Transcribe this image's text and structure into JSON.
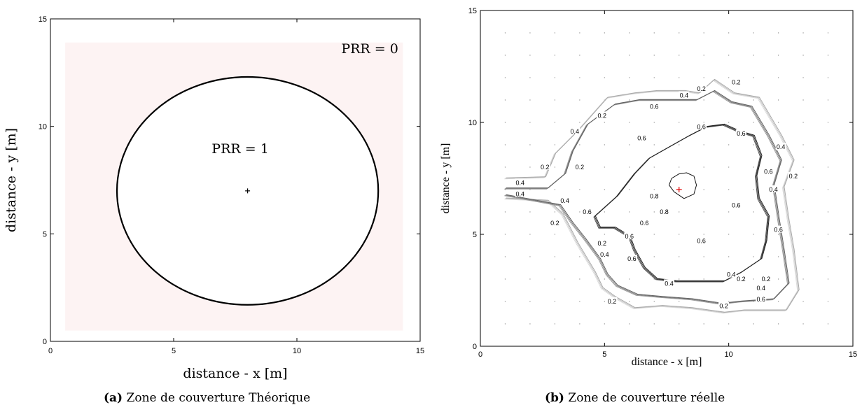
{
  "chart_data": [
    {
      "type": "scatter",
      "panel": "(a)",
      "caption_tag": "(a)",
      "caption_text": "Zone de couverture Théorique",
      "xlabel": "distance - x [m]",
      "ylabel": "distance - y [m]",
      "xlim": [
        0,
        15
      ],
      "ylim": [
        0,
        15
      ],
      "xticks": [
        0,
        5,
        10,
        15
      ],
      "yticks": [
        0,
        5,
        10,
        15
      ],
      "grid": false,
      "shaded_region": {
        "x": [
          0.6,
          14.3
        ],
        "y": [
          0.5,
          13.9
        ],
        "color": "#fdf3f3"
      },
      "circle": {
        "cx": 8,
        "cy": 7,
        "r": 5.3
      },
      "center_marker": {
        "x": 8,
        "y": 7,
        "symbol": "+"
      },
      "annotations": [
        {
          "text": "PRR = 0",
          "x": 14.0,
          "y": 13.6
        },
        {
          "text": "PRR = 1",
          "x": 7.7,
          "y": 8.95
        }
      ]
    },
    {
      "type": "contour",
      "panel": "(b)",
      "caption_tag": "(b)",
      "caption_text": "Zone de couverture réelle",
      "xlabel": "distance - x [m]",
      "ylabel": "distance - y [m]",
      "xlim": [
        0,
        15
      ],
      "ylim": [
        0,
        15
      ],
      "xticks": [
        0,
        5,
        10,
        15
      ],
      "yticks": [
        0,
        5,
        10,
        15
      ],
      "grid": true,
      "grid_style": "dotted",
      "levels": [
        0.2,
        0.4,
        0.6,
        0.8
      ],
      "contours": [
        {
          "level": 0.2,
          "points": [
            [
              1,
              7.5
            ],
            [
              2.6,
              7.55
            ],
            [
              3,
              8.6
            ],
            [
              3.9,
              9.6
            ],
            [
              5.1,
              11.1
            ],
            [
              6.2,
              11.3
            ],
            [
              7.1,
              11.4
            ],
            [
              8.2,
              11.4
            ],
            [
              8.8,
              11.3
            ],
            [
              9.4,
              11.9
            ],
            [
              10.2,
              11.3
            ],
            [
              11.2,
              11.1
            ],
            [
              12.1,
              9.4
            ],
            [
              12.6,
              8.3
            ],
            [
              12.2,
              7.1
            ],
            [
              12.4,
              5.6
            ],
            [
              12.6,
              4.3
            ],
            [
              12.8,
              2.5
            ],
            [
              12.3,
              1.6
            ],
            [
              10.6,
              1.6
            ],
            [
              9.8,
              1.5
            ],
            [
              8.5,
              1.7
            ],
            [
              7.3,
              1.8
            ],
            [
              6.2,
              1.7
            ],
            [
              5.4,
              2.2
            ],
            [
              4.9,
              2.6
            ],
            [
              4.6,
              3.3
            ],
            [
              3.9,
              4.6
            ],
            [
              3.3,
              5.9
            ],
            [
              2.7,
              6.5
            ],
            [
              1,
              6.6
            ]
          ]
        },
        {
          "level": 0.4,
          "points": [
            [
              1,
              7.05
            ],
            [
              2.7,
              7.05
            ],
            [
              3.4,
              7.7
            ],
            [
              3.7,
              8.7
            ],
            [
              4.3,
              9.9
            ],
            [
              5.4,
              10.8
            ],
            [
              6.4,
              11
            ],
            [
              7.3,
              11
            ],
            [
              8.1,
              11
            ],
            [
              8.7,
              11
            ],
            [
              9.4,
              11.4
            ],
            [
              10.1,
              10.9
            ],
            [
              10.9,
              10.7
            ],
            [
              11.6,
              9.4
            ],
            [
              12.1,
              8.3
            ],
            [
              11.8,
              7.2
            ],
            [
              12,
              5.7
            ],
            [
              12.2,
              4.3
            ],
            [
              12.4,
              2.8
            ],
            [
              11.8,
              2.1
            ],
            [
              10.5,
              2
            ],
            [
              9.7,
              1.9
            ],
            [
              8.5,
              2.1
            ],
            [
              7.3,
              2.2
            ],
            [
              6.3,
              2.3
            ],
            [
              5.5,
              2.7
            ],
            [
              5.1,
              3.2
            ],
            [
              4.8,
              3.9
            ],
            [
              4.2,
              4.8
            ],
            [
              3.7,
              5.5
            ],
            [
              3.2,
              6.3
            ],
            [
              1,
              6.75
            ]
          ]
        },
        {
          "level": 0.6,
          "points": [
            [
              4.6,
              5.8
            ],
            [
              5.5,
              6.7
            ],
            [
              6.2,
              7.7
            ],
            [
              6.8,
              8.4
            ],
            [
              7.6,
              8.9
            ],
            [
              8.4,
              9.4
            ],
            [
              9.1,
              9.8
            ],
            [
              9.8,
              9.9
            ],
            [
              10.4,
              9.6
            ],
            [
              11,
              9.4
            ],
            [
              11.3,
              8.5
            ],
            [
              11.1,
              7.6
            ],
            [
              11.2,
              6.6
            ],
            [
              11.6,
              5.8
            ],
            [
              11.5,
              4.7
            ],
            [
              11.3,
              3.9
            ],
            [
              10.5,
              3.3
            ],
            [
              9.8,
              2.9
            ],
            [
              8.8,
              2.9
            ],
            [
              7.9,
              2.9
            ],
            [
              7.1,
              3
            ],
            [
              6.6,
              3.5
            ],
            [
              6.2,
              4.3
            ],
            [
              6,
              4.9
            ],
            [
              5.4,
              5.3
            ],
            [
              4.8,
              5.3
            ],
            [
              4.6,
              5.8
            ]
          ]
        },
        {
          "level": 0.8,
          "points": [
            [
              7.6,
              7.2
            ],
            [
              7.8,
              6.9
            ],
            [
              8.2,
              6.6
            ],
            [
              8.6,
              6.8
            ],
            [
              8.7,
              7.2
            ],
            [
              8.6,
              7.6
            ],
            [
              8.3,
              7.75
            ],
            [
              8,
              7.7
            ],
            [
              7.7,
              7.5
            ],
            [
              7.6,
              7.2
            ]
          ]
        }
      ],
      "contour_labels": [
        {
          "text": "0.2",
          "x": 2.6,
          "y": 8.0
        },
        {
          "text": "0.2",
          "x": 4.0,
          "y": 8.0
        },
        {
          "text": "0.4",
          "x": 1.6,
          "y": 7.3
        },
        {
          "text": "0.4",
          "x": 1.6,
          "y": 6.8
        },
        {
          "text": "0.4",
          "x": 3.8,
          "y": 9.6
        },
        {
          "text": "0.2",
          "x": 4.9,
          "y": 10.3
        },
        {
          "text": "0.4",
          "x": 8.2,
          "y": 11.2
        },
        {
          "text": "0.2",
          "x": 8.9,
          "y": 11.5
        },
        {
          "text": "0.6",
          "x": 7.0,
          "y": 10.7
        },
        {
          "text": "0.2",
          "x": 10.3,
          "y": 11.8
        },
        {
          "text": "0.6",
          "x": 6.5,
          "y": 9.3
        },
        {
          "text": "0.6",
          "x": 8.9,
          "y": 9.8
        },
        {
          "text": "0.6",
          "x": 10.5,
          "y": 9.5
        },
        {
          "text": "0.4",
          "x": 12.1,
          "y": 8.9
        },
        {
          "text": "0.6",
          "x": 11.6,
          "y": 7.8
        },
        {
          "text": "0.2",
          "x": 12.6,
          "y": 7.6
        },
        {
          "text": "0.4",
          "x": 11.8,
          "y": 7.0
        },
        {
          "text": "0.8",
          "x": 7.0,
          "y": 6.7
        },
        {
          "text": "0.8",
          "x": 7.4,
          "y": 6.0
        },
        {
          "text": "0.6",
          "x": 10.3,
          "y": 6.3
        },
        {
          "text": "0.4",
          "x": 3.4,
          "y": 6.5
        },
        {
          "text": "0.6",
          "x": 4.3,
          "y": 6.0
        },
        {
          "text": "0.6",
          "x": 6.6,
          "y": 5.5
        },
        {
          "text": "0.6",
          "x": 12.0,
          "y": 5.2
        },
        {
          "text": "0.2",
          "x": 3.0,
          "y": 5.5
        },
        {
          "text": "0.6",
          "x": 6.0,
          "y": 4.9
        },
        {
          "text": "0.6",
          "x": 8.9,
          "y": 4.7
        },
        {
          "text": "0.2",
          "x": 4.9,
          "y": 4.6
        },
        {
          "text": "0.4",
          "x": 5.0,
          "y": 4.1
        },
        {
          "text": "0.6",
          "x": 6.1,
          "y": 3.9
        },
        {
          "text": "0.4",
          "x": 10.1,
          "y": 3.2
        },
        {
          "text": "0.2",
          "x": 10.5,
          "y": 3.0
        },
        {
          "text": "0.4",
          "x": 7.6,
          "y": 2.8
        },
        {
          "text": "0.2",
          "x": 11.5,
          "y": 3.0
        },
        {
          "text": "0.4",
          "x": 11.3,
          "y": 2.6
        },
        {
          "text": "0.6",
          "x": 11.3,
          "y": 2.1
        },
        {
          "text": "0.2",
          "x": 5.3,
          "y": 2.0
        },
        {
          "text": "0.2",
          "x": 9.8,
          "y": 1.8
        }
      ],
      "source_marker": {
        "x": 8,
        "y": 7,
        "symbol": "+",
        "color": "#e00000"
      }
    }
  ]
}
